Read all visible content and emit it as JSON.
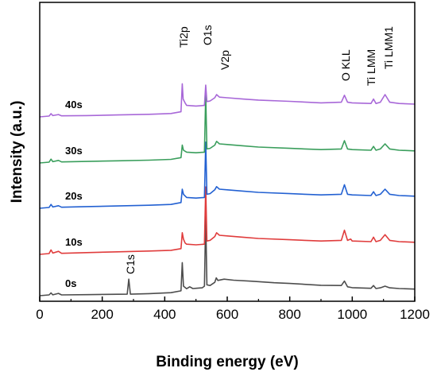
{
  "chart_data": {
    "type": "line",
    "xlabel": "Binding energy (eV)",
    "ylabel": "Intensity (a.u.)",
    "xlim": [
      0,
      1200
    ],
    "x_ticks": [
      "0",
      "200",
      "400",
      "600",
      "800",
      "1000",
      "1200"
    ],
    "y_ticks_shown": false,
    "y_scale": "arbitrary units, spectra vertically offset",
    "grid": false,
    "legend": "none; series labelled on the left",
    "series": [
      {
        "name": "0s",
        "color": "#4d4d4d",
        "points": [
          [
            0,
            0
          ],
          [
            30,
            0.6
          ],
          [
            36,
            2.2
          ],
          [
            42,
            0.7
          ],
          [
            60,
            1.8
          ],
          [
            70,
            0.6
          ],
          [
            150,
            0.8
          ],
          [
            250,
            1.1
          ],
          [
            280,
            1.2
          ],
          [
            285,
            13
          ],
          [
            290,
            1.2
          ],
          [
            350,
            1.6
          ],
          [
            420,
            2.4
          ],
          [
            452,
            3.8
          ],
          [
            456,
            26
          ],
          [
            460,
            7.5
          ],
          [
            470,
            5.5
          ],
          [
            480,
            7
          ],
          [
            490,
            5.6
          ],
          [
            500,
            5.8
          ],
          [
            520,
            6.2
          ],
          [
            527,
            7.5
          ],
          [
            531,
            62
          ],
          [
            535,
            8.5
          ],
          [
            545,
            8
          ],
          [
            560,
            10.5
          ],
          [
            565,
            14
          ],
          [
            570,
            12
          ],
          [
            590,
            13
          ],
          [
            620,
            12.2
          ],
          [
            680,
            11.4
          ],
          [
            750,
            10.2
          ],
          [
            800,
            9.6
          ],
          [
            900,
            8.2
          ],
          [
            965,
            8
          ],
          [
            975,
            11.5
          ],
          [
            985,
            7
          ],
          [
            1000,
            6.3
          ],
          [
            1060,
            5.8
          ],
          [
            1068,
            8
          ],
          [
            1076,
            5.6
          ],
          [
            1090,
            6.2
          ],
          [
            1105,
            7.5
          ],
          [
            1120,
            6.2
          ],
          [
            1150,
            5.6
          ],
          [
            1200,
            5.2
          ]
        ]
      },
      {
        "name": "10s",
        "color": "#e03c3c",
        "points": [
          [
            0,
            0
          ],
          [
            30,
            0.6
          ],
          [
            36,
            3.5
          ],
          [
            42,
            1
          ],
          [
            60,
            2.4
          ],
          [
            70,
            0.8
          ],
          [
            150,
            1.4
          ],
          [
            250,
            2
          ],
          [
            350,
            2.6
          ],
          [
            420,
            3.2
          ],
          [
            452,
            4.5
          ],
          [
            456,
            17
          ],
          [
            460,
            12
          ],
          [
            465,
            9
          ],
          [
            470,
            8
          ],
          [
            500,
            7.5
          ],
          [
            527,
            8
          ],
          [
            531,
            53
          ],
          [
            535,
            10.5
          ],
          [
            545,
            11
          ],
          [
            560,
            14
          ],
          [
            566,
            17
          ],
          [
            575,
            15
          ],
          [
            600,
            14.5
          ],
          [
            650,
            13.5
          ],
          [
            700,
            12.5
          ],
          [
            800,
            11.5
          ],
          [
            900,
            10.5
          ],
          [
            965,
            11
          ],
          [
            975,
            19
          ],
          [
            985,
            11
          ],
          [
            995,
            12
          ],
          [
            1000,
            10.5
          ],
          [
            1060,
            10
          ],
          [
            1068,
            13.5
          ],
          [
            1076,
            10
          ],
          [
            1090,
            11
          ],
          [
            1105,
            15.5
          ],
          [
            1120,
            11
          ],
          [
            1150,
            10
          ],
          [
            1200,
            9.5
          ]
        ]
      },
      {
        "name": "20s",
        "color": "#2361d2",
        "points": [
          [
            0,
            0
          ],
          [
            30,
            0.6
          ],
          [
            36,
            3
          ],
          [
            42,
            1
          ],
          [
            60,
            2
          ],
          [
            70,
            0.8
          ],
          [
            150,
            1.3
          ],
          [
            250,
            1.8
          ],
          [
            350,
            2.4
          ],
          [
            420,
            3
          ],
          [
            452,
            4.5
          ],
          [
            456,
            15
          ],
          [
            460,
            11
          ],
          [
            470,
            8.5
          ],
          [
            500,
            8
          ],
          [
            527,
            8.5
          ],
          [
            531,
            52
          ],
          [
            535,
            11
          ],
          [
            545,
            11.5
          ],
          [
            560,
            14.5
          ],
          [
            566,
            17
          ],
          [
            575,
            15
          ],
          [
            600,
            14.5
          ],
          [
            650,
            13.5
          ],
          [
            700,
            12.5
          ],
          [
            800,
            11.5
          ],
          [
            900,
            10.5
          ],
          [
            965,
            11
          ],
          [
            975,
            18.5
          ],
          [
            985,
            11
          ],
          [
            1000,
            10.5
          ],
          [
            1060,
            10
          ],
          [
            1068,
            13
          ],
          [
            1076,
            10
          ],
          [
            1090,
            11
          ],
          [
            1105,
            15
          ],
          [
            1120,
            11
          ],
          [
            1150,
            10
          ],
          [
            1200,
            9.5
          ]
        ]
      },
      {
        "name": "30s",
        "color": "#3a9e5c",
        "points": [
          [
            0,
            0
          ],
          [
            30,
            0.6
          ],
          [
            36,
            3
          ],
          [
            42,
            1
          ],
          [
            60,
            2
          ],
          [
            70,
            0.8
          ],
          [
            150,
            1.2
          ],
          [
            250,
            1.7
          ],
          [
            350,
            2.2
          ],
          [
            420,
            2.8
          ],
          [
            452,
            4.2
          ],
          [
            456,
            14
          ],
          [
            460,
            10
          ],
          [
            470,
            8.5
          ],
          [
            500,
            8
          ],
          [
            527,
            8.5
          ],
          [
            531,
            54
          ],
          [
            535,
            11
          ],
          [
            545,
            11.5
          ],
          [
            560,
            14
          ],
          [
            566,
            17
          ],
          [
            575,
            15
          ],
          [
            600,
            14.5
          ],
          [
            650,
            13.5
          ],
          [
            700,
            12.5
          ],
          [
            800,
            11.5
          ],
          [
            900,
            10.5
          ],
          [
            965,
            11
          ],
          [
            975,
            17.5
          ],
          [
            985,
            11
          ],
          [
            1000,
            10.5
          ],
          [
            1060,
            10
          ],
          [
            1068,
            13
          ],
          [
            1076,
            10
          ],
          [
            1090,
            11
          ],
          [
            1105,
            15
          ],
          [
            1120,
            11
          ],
          [
            1150,
            10
          ],
          [
            1200,
            9.5
          ]
        ]
      },
      {
        "name": "40s",
        "color": "#a868d8",
        "points": [
          [
            0,
            0
          ],
          [
            30,
            0.6
          ],
          [
            36,
            2.5
          ],
          [
            42,
            1
          ],
          [
            60,
            1.8
          ],
          [
            70,
            0.8
          ],
          [
            150,
            1
          ],
          [
            250,
            1.5
          ],
          [
            350,
            2
          ],
          [
            420,
            2.6
          ],
          [
            452,
            4
          ],
          [
            456,
            26
          ],
          [
            459,
            14
          ],
          [
            465,
            11
          ],
          [
            470,
            9
          ],
          [
            500,
            8.5
          ],
          [
            527,
            9
          ],
          [
            531,
            25
          ],
          [
            535,
            12
          ],
          [
            545,
            12.5
          ],
          [
            560,
            15
          ],
          [
            566,
            17.5
          ],
          [
            575,
            15.5
          ],
          [
            600,
            15
          ],
          [
            650,
            14
          ],
          [
            700,
            13.2
          ],
          [
            800,
            12.2
          ],
          [
            900,
            11
          ],
          [
            965,
            11.5
          ],
          [
            975,
            17
          ],
          [
            985,
            11.5
          ],
          [
            1000,
            11
          ],
          [
            1060,
            10.5
          ],
          [
            1068,
            14
          ],
          [
            1076,
            10.5
          ],
          [
            1090,
            11.5
          ],
          [
            1105,
            17.5
          ],
          [
            1120,
            11.5
          ],
          [
            1150,
            10.5
          ],
          [
            1200,
            10
          ]
        ]
      }
    ],
    "annotations": [
      "Ti2p",
      "O1s",
      "V2p",
      "O KLL",
      "Ti LMM",
      "Ti LMM1",
      "C1s"
    ]
  }
}
